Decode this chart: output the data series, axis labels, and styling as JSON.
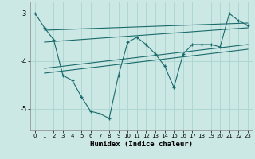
{
  "xlabel": "Humidex (Indice chaleur)",
  "ylabel": "",
  "background_color": "#cce8e5",
  "line_color": "#1a6b6b",
  "grid_color": "#aad4d0",
  "xlim": [
    -0.5,
    23.5
  ],
  "ylim": [
    -5.45,
    -2.75
  ],
  "yticks": [
    -5,
    -4,
    -3
  ],
  "xticks": [
    0,
    1,
    2,
    3,
    4,
    5,
    6,
    7,
    8,
    9,
    10,
    11,
    12,
    13,
    14,
    15,
    16,
    17,
    18,
    19,
    20,
    21,
    22,
    23
  ],
  "main_x": [
    0,
    1,
    2,
    3,
    4,
    5,
    6,
    7,
    8,
    9,
    10,
    11,
    12,
    13,
    14,
    15,
    16,
    17,
    18,
    19,
    20,
    21,
    22,
    23
  ],
  "main_y": [
    -3.0,
    -3.3,
    -3.55,
    -4.3,
    -4.4,
    -4.75,
    -5.05,
    -5.1,
    -5.2,
    -4.3,
    -3.6,
    -3.5,
    -3.65,
    -3.85,
    -4.1,
    -4.55,
    -3.85,
    -3.65,
    -3.65,
    -3.65,
    -3.7,
    -3.0,
    -3.15,
    -3.25
  ],
  "line1_x": [
    1,
    23
  ],
  "line1_y": [
    -3.35,
    -3.2
  ],
  "line2_x": [
    1,
    23
  ],
  "line2_y": [
    -3.6,
    -3.3
  ],
  "line3_x": [
    1,
    23
  ],
  "line3_y": [
    -4.15,
    -3.65
  ],
  "line4_x": [
    1,
    23
  ],
  "line4_y": [
    -4.25,
    -3.75
  ]
}
